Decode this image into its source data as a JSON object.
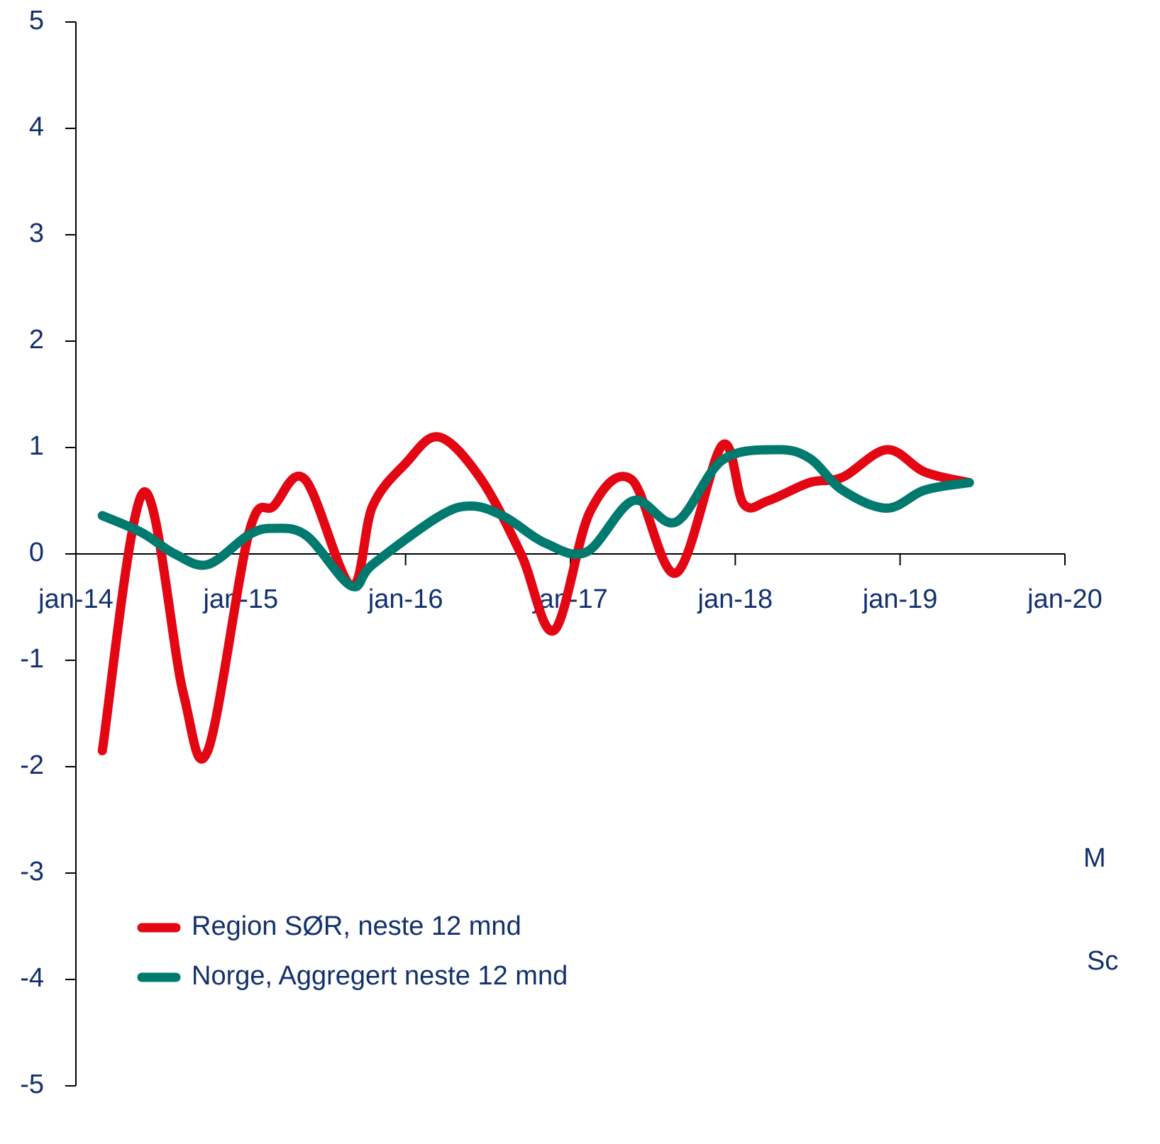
{
  "chart_data": {
    "type": "line",
    "xlim": [
      2014,
      2020
    ],
    "xticks": [
      {
        "value": 2014,
        "label": "jan-14"
      },
      {
        "value": 2015,
        "label": "jan-15"
      },
      {
        "value": 2016,
        "label": "jan-16"
      },
      {
        "value": 2017,
        "label": "jan-17"
      },
      {
        "value": 2018,
        "label": "jan-18"
      },
      {
        "value": 2019,
        "label": "jan-19"
      },
      {
        "value": 2020,
        "label": "jan-20"
      }
    ],
    "ylim": [
      -5,
      5
    ],
    "yticks": [
      -5,
      -4,
      -3,
      -2,
      -1,
      0,
      1,
      2,
      3,
      4,
      5
    ],
    "legend": "lower left",
    "annotations": [
      "M",
      "Sc"
    ],
    "series": [
      {
        "name": "Region SØR, neste 12 mnd",
        "color": "#e30613",
        "x": [
          2014.16,
          2014.41,
          2014.65,
          2014.8,
          2015.05,
          2015.2,
          2015.39,
          2015.67,
          2015.8,
          2016.0,
          2016.2,
          2016.45,
          2016.7,
          2016.9,
          2017.12,
          2017.37,
          2017.64,
          2017.92,
          2018.05,
          2018.2,
          2018.45,
          2018.65,
          2018.92,
          2019.15,
          2019.42
        ],
        "values": [
          -1.85,
          0.58,
          -1.3,
          -1.85,
          0.2,
          0.45,
          0.7,
          -0.3,
          0.45,
          0.85,
          1.1,
          0.72,
          0.0,
          -0.72,
          0.4,
          0.7,
          -0.18,
          1.02,
          0.47,
          0.5,
          0.67,
          0.72,
          0.98,
          0.77,
          0.67
        ]
      },
      {
        "name": "Norge, Aggregert neste 12 mnd",
        "color": "#007a6e",
        "x": [
          2014.16,
          2014.4,
          2014.6,
          2014.8,
          2015.05,
          2015.2,
          2015.4,
          2015.67,
          2015.8,
          2016.2,
          2016.4,
          2016.6,
          2016.85,
          2017.1,
          2017.38,
          2017.64,
          2017.92,
          2018.25,
          2018.45,
          2018.65,
          2018.92,
          2019.15,
          2019.42
        ],
        "values": [
          0.36,
          0.2,
          0.0,
          -0.1,
          0.18,
          0.24,
          0.17,
          -0.3,
          -0.1,
          0.35,
          0.45,
          0.35,
          0.1,
          0.02,
          0.5,
          0.3,
          0.88,
          0.98,
          0.9,
          0.6,
          0.43,
          0.6,
          0.67
        ]
      }
    ]
  }
}
